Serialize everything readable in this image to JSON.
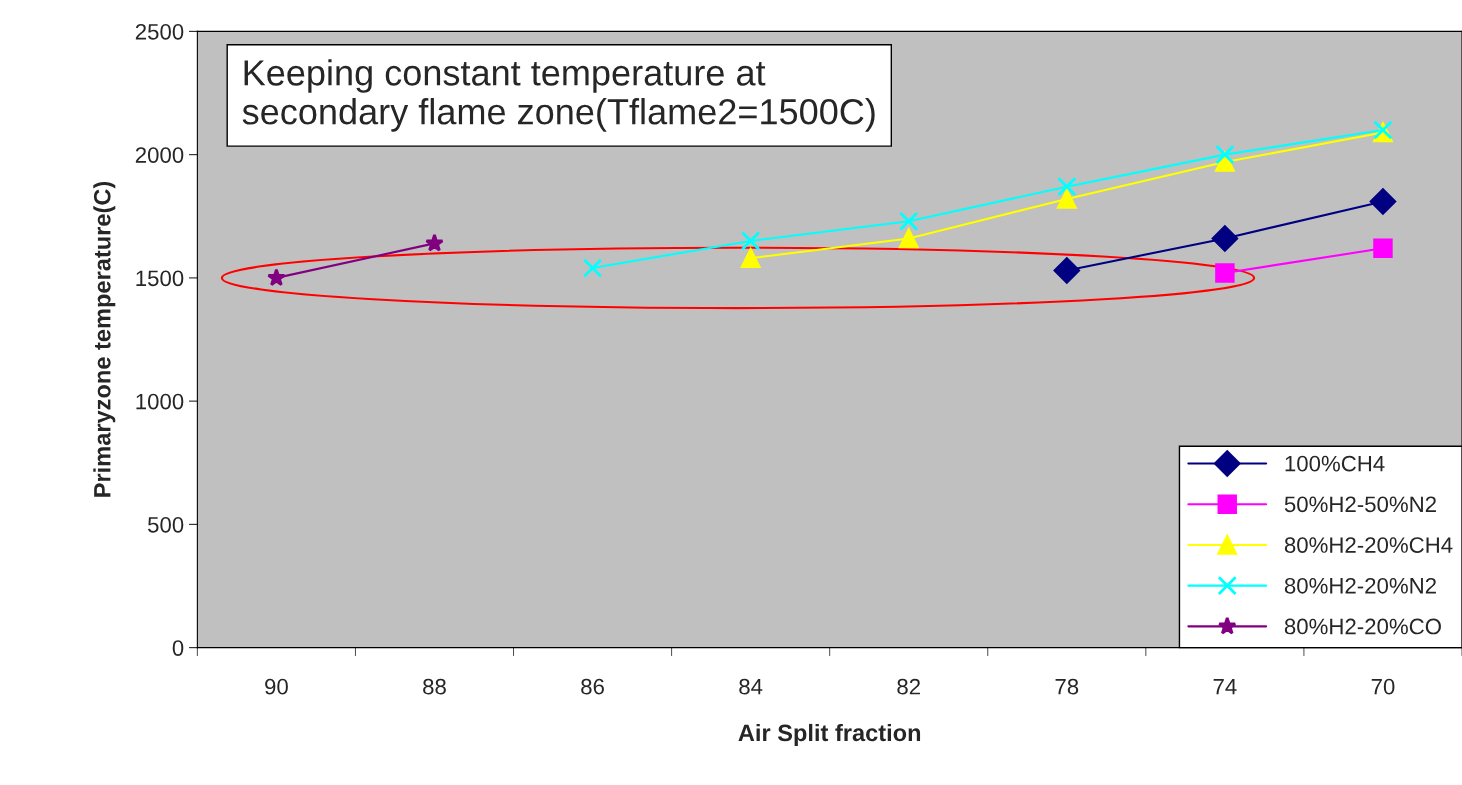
{
  "chart_data": {
    "type": "line",
    "xlabel": "Air Split fraction",
    "ylabel": "Primaryzone temperature(C)",
    "categories": [
      "90",
      "88",
      "86",
      "84",
      "82",
      "78",
      "74",
      "70"
    ],
    "series": [
      {
        "name": "100%CH4",
        "color": "#000080",
        "marker": "diamond",
        "values": [
          null,
          null,
          null,
          null,
          null,
          1530,
          1660,
          1810
        ]
      },
      {
        "name": "50%H2-50%N2",
        "color": "#ff00ff",
        "marker": "square",
        "values": [
          null,
          null,
          null,
          null,
          null,
          null,
          1520,
          1620
        ]
      },
      {
        "name": "80%H2-20%CH4",
        "color": "#ffff00",
        "marker": "triangle",
        "values": [
          null,
          null,
          null,
          1580,
          1660,
          1820,
          1970,
          2090
        ]
      },
      {
        "name": "80%H2-20%N2",
        "color": "#00ffff",
        "marker": "cross",
        "values": [
          null,
          null,
          1540,
          1650,
          1730,
          1870,
          2000,
          2100
        ]
      },
      {
        "name": "80%H2-20%CO",
        "color": "#800080",
        "marker": "star",
        "values": [
          1500,
          1640,
          null,
          null,
          null,
          null,
          null,
          null
        ]
      }
    ],
    "ylim": [
      0,
      2500
    ],
    "yticks": [
      0,
      500,
      1000,
      1500,
      2000,
      2500
    ],
    "grid": false,
    "legend": "bottom right",
    "line_style": "solid",
    "annotations": [
      "Keeping constant temperature at\nsecondary flame zone(Tflame2=1500C)"
    ]
  }
}
